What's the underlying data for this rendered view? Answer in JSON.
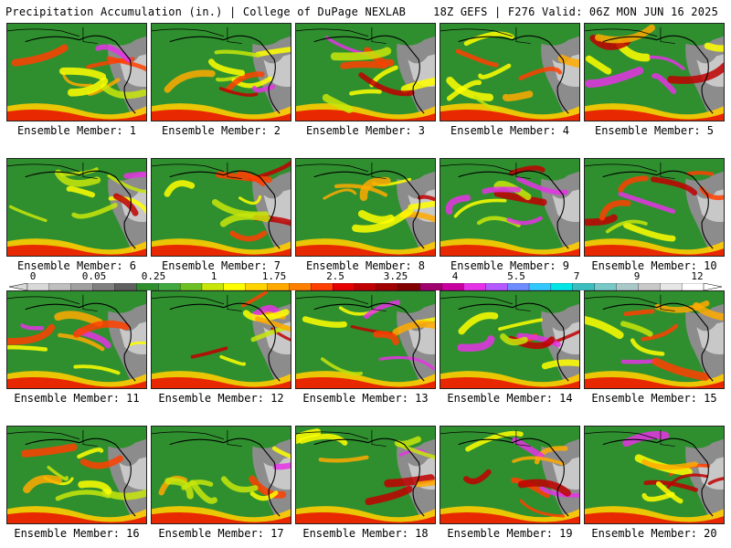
{
  "header": {
    "title": "Precipitation Accumulation (in.) | College of DuPage NEXLAB",
    "run_info": "18Z GEFS | F276 Valid: 06Z MON JUN 16 2025"
  },
  "members": [
    "Ensemble Member: 1",
    "Ensemble Member: 2",
    "Ensemble Member: 3",
    "Ensemble Member: 4",
    "Ensemble Member: 5",
    "Ensemble Member: 6",
    "Ensemble Member: 7",
    "Ensemble Member: 8",
    "Ensemble Member: 9",
    "Ensemble Member: 10",
    "Ensemble Member: 11",
    "Ensemble Member: 12",
    "Ensemble Member: 13",
    "Ensemble Member: 14",
    "Ensemble Member: 15",
    "Ensemble Member: 16",
    "Ensemble Member: 17",
    "Ensemble Member: 18",
    "Ensemble Member: 19",
    "Ensemble Member: 20"
  ],
  "colorbar": {
    "ticks": [
      "0",
      "0.05",
      "0.25",
      "1",
      "1.75",
      "2.5",
      "3.25",
      "4",
      "5.5",
      "7",
      "9",
      "12"
    ],
    "colors": [
      "#d9d9d9",
      "#bfbfbf",
      "#a0a0a0",
      "#808080",
      "#606060",
      "#2f8f2f",
      "#3fa83f",
      "#6cc024",
      "#c8e60a",
      "#ffff00",
      "#ffd400",
      "#ffaa00",
      "#ff7f00",
      "#ff4000",
      "#e60000",
      "#c00000",
      "#a00000",
      "#800000",
      "#a0006e",
      "#c800a0",
      "#e632e6",
      "#b45aff",
      "#6e8cff",
      "#32c8ff",
      "#00e6e6",
      "#3cbebe",
      "#78c8c8",
      "#aac8c8",
      "#c8c8c8",
      "#e6e6e6",
      "#ffffff"
    ]
  }
}
